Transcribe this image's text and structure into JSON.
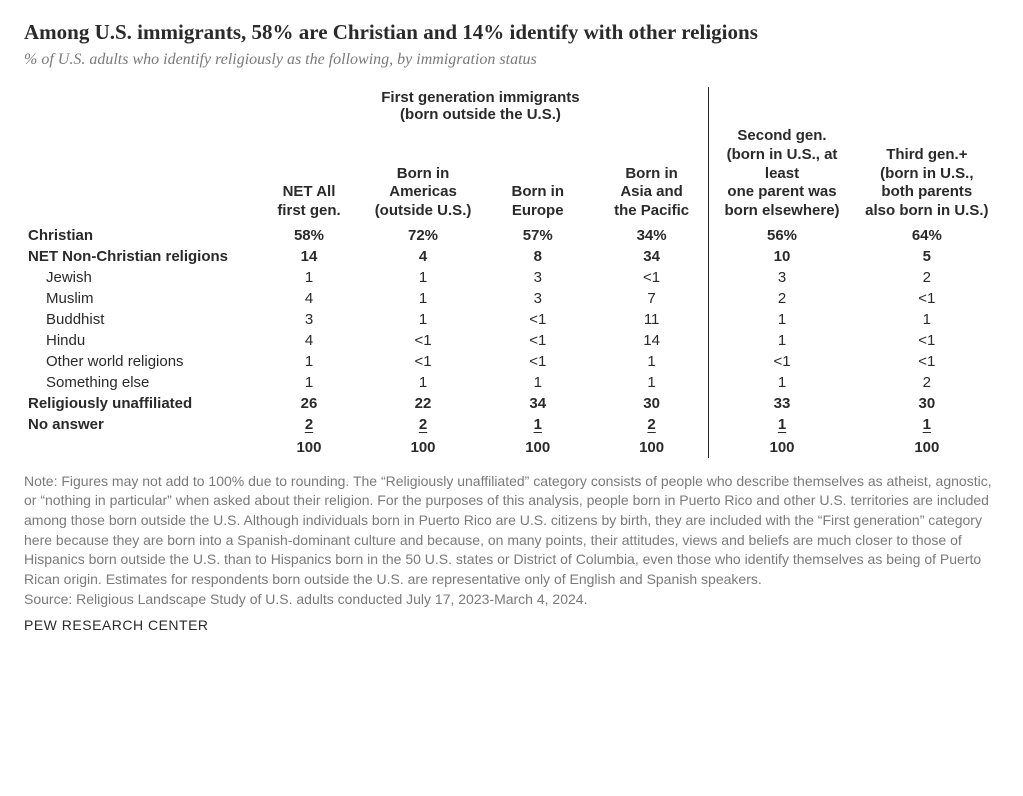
{
  "title": "Among U.S. immigrants, 58% are Christian and 14% identify with other religions",
  "subtitle": "% of U.S. adults who identify religiously as the following, by immigration status",
  "columns": {
    "spanner": "First generation immigrants\n(born outside the U.S.)",
    "c1": "NET All\nfirst gen.",
    "c2": "Born in\nAmericas\n(outside U.S.)",
    "c3": "Born in\nEurope",
    "c4": "Born in\nAsia and\nthe Pacific",
    "c5": "Second gen.\n(born in U.S., at least\none parent was\nborn elsewhere)",
    "c6": "Third gen.+\n(born in U.S.,\nboth parents\nalso born in U.S.)"
  },
  "rows": {
    "christian": {
      "label": "Christian",
      "v": [
        "58%",
        "72%",
        "57%",
        "34%",
        "56%",
        "64%"
      ]
    },
    "netnon": {
      "label": "NET Non-Christian religions",
      "v": [
        "14",
        "4",
        "8",
        "34",
        "10",
        "5"
      ]
    },
    "jewish": {
      "label": "Jewish",
      "v": [
        "1",
        "1",
        "3",
        "<1",
        "3",
        "2"
      ]
    },
    "muslim": {
      "label": "Muslim",
      "v": [
        "4",
        "1",
        "3",
        "7",
        "2",
        "<1"
      ]
    },
    "buddhist": {
      "label": "Buddhist",
      "v": [
        "3",
        "1",
        "<1",
        "11",
        "1",
        "1"
      ]
    },
    "hindu": {
      "label": "Hindu",
      "v": [
        "4",
        "<1",
        "<1",
        "14",
        "1",
        "<1"
      ]
    },
    "other": {
      "label": "Other world religions",
      "v": [
        "1",
        "<1",
        "<1",
        "1",
        "<1",
        "<1"
      ]
    },
    "something": {
      "label": "Something else",
      "v": [
        "1",
        "1",
        "1",
        "1",
        "1",
        "2"
      ]
    },
    "unaffiliated": {
      "label": "Religiously unaffiliated",
      "v": [
        "26",
        "22",
        "34",
        "30",
        "33",
        "30"
      ]
    },
    "noanswer": {
      "label": "No answer",
      "v": [
        "2",
        "2",
        "1",
        "2",
        "1",
        "1"
      ]
    },
    "total": {
      "label": "",
      "v": [
        "100",
        "100",
        "100",
        "100",
        "100",
        "100"
      ]
    }
  },
  "note": "Note: Figures may not add to 100% due to rounding. The “Religiously unaffiliated” category consists of people who describe themselves as atheist, agnostic, or “nothing in particular” when asked about their religion. For the purposes of this analysis, people born in Puerto Rico and other U.S. territories are included among those born outside the U.S. Although individuals born in Puerto Rico are U.S. citizens by birth, they are included with the “First generation” category here because they are born into a Spanish-dominant culture and because, on many points, their attitudes, views and beliefs are much closer to those of Hispanics born outside the U.S. than to Hispanics born in the 50 U.S. states or District of Columbia, even those who identify themselves as being of Puerto Rican origin. Estimates for respondents born outside the U.S. are representative only of English and Spanish speakers.",
  "source": "Source: Religious Landscape Study of U.S. adults conducted July 17, 2023-March 4, 2024.",
  "footer": "PEW RESEARCH CENTER",
  "style": {
    "background_color": "#ffffff",
    "title_color": "#2a2a2a",
    "subtitle_color": "#7a7a7a",
    "note_color": "#7a7a7a",
    "divider_color": "#2a2a2a",
    "title_fontsize": 21,
    "subtitle_fontsize": 16,
    "body_fontsize": 15,
    "note_fontsize": 14
  }
}
